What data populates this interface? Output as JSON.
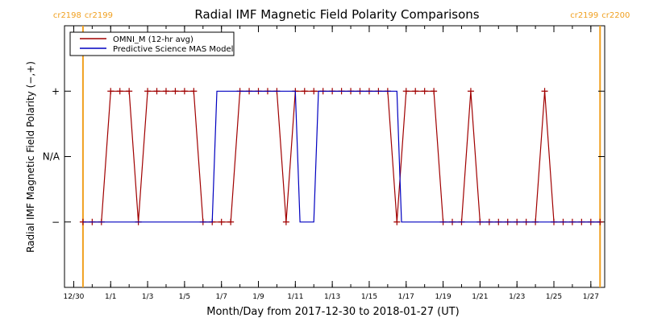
{
  "chart_data": {
    "type": "line",
    "title": "Radial IMF Magnetic Field Polarity Comparisons",
    "xlabel": "Month/Day from 2017-12-30 to 2018-01-27 (UT)",
    "ylabel": "Radial IMF Magnetic Field Polarity (−,+)",
    "xlim": [
      "2017-12-30T00:00",
      "2018-01-27T12:00"
    ],
    "ylim": [
      -2,
      2
    ],
    "y_categories": [
      {
        "value": -1,
        "label": "−"
      },
      {
        "value": 0,
        "label": "N/A"
      },
      {
        "value": 1,
        "label": "+"
      }
    ],
    "x_tick_labels": [
      {
        "date": "2017-12-30",
        "label": "12/30"
      },
      {
        "date": "2018-01-01",
        "label": "1/1"
      },
      {
        "date": "2018-01-03",
        "label": "1/3"
      },
      {
        "date": "2018-01-05",
        "label": "1/5"
      },
      {
        "date": "2018-01-07",
        "label": "1/7"
      },
      {
        "date": "2018-01-09",
        "label": "1/9"
      },
      {
        "date": "2018-01-11",
        "label": "1/11"
      },
      {
        "date": "2018-01-13",
        "label": "1/13"
      },
      {
        "date": "2018-01-15",
        "label": "1/15"
      },
      {
        "date": "2018-01-17",
        "label": "1/17"
      },
      {
        "date": "2018-01-19",
        "label": "1/19"
      },
      {
        "date": "2018-01-21",
        "label": "1/21"
      },
      {
        "date": "2018-01-23",
        "label": "1/23"
      },
      {
        "date": "2018-01-25",
        "label": "1/25"
      },
      {
        "date": "2018-01-27",
        "label": "1/27"
      }
    ],
    "rotation_markers": [
      {
        "date": "2017-12-30T12:00",
        "left_label": "cr2198",
        "right_label": "cr2199"
      },
      {
        "date": "2018-01-27T12:00",
        "left_label": "cr2199",
        "right_label": "cr2200"
      }
    ],
    "legend_position": "top-left",
    "series": [
      {
        "name": "OMNI_M (12-hr avg)",
        "color": "#a00000",
        "markers": "plus",
        "x": [
          "2017-12-30T12:00",
          "2017-12-31T00:00",
          "2017-12-31T12:00",
          "2018-01-01T00:00",
          "2018-01-01T12:00",
          "2018-01-02T00:00",
          "2018-01-02T12:00",
          "2018-01-03T00:00",
          "2018-01-03T12:00",
          "2018-01-04T00:00",
          "2018-01-04T12:00",
          "2018-01-05T00:00",
          "2018-01-05T12:00",
          "2018-01-06T00:00",
          "2018-01-06T12:00",
          "2018-01-07T00:00",
          "2018-01-07T12:00",
          "2018-01-08T00:00",
          "2018-01-08T12:00",
          "2018-01-09T00:00",
          "2018-01-09T12:00",
          "2018-01-10T00:00",
          "2018-01-10T12:00",
          "2018-01-11T00:00",
          "2018-01-11T12:00",
          "2018-01-12T00:00",
          "2018-01-12T12:00",
          "2018-01-13T00:00",
          "2018-01-13T12:00",
          "2018-01-14T00:00",
          "2018-01-14T12:00",
          "2018-01-15T00:00",
          "2018-01-15T12:00",
          "2018-01-16T00:00",
          "2018-01-16T12:00",
          "2018-01-17T00:00",
          "2018-01-17T12:00",
          "2018-01-18T00:00",
          "2018-01-18T12:00",
          "2018-01-19T00:00",
          "2018-01-19T12:00",
          "2018-01-20T00:00",
          "2018-01-20T12:00",
          "2018-01-21T00:00",
          "2018-01-21T12:00",
          "2018-01-22T00:00",
          "2018-01-22T12:00",
          "2018-01-23T00:00",
          "2018-01-23T12:00",
          "2018-01-24T00:00",
          "2018-01-24T12:00",
          "2018-01-25T00:00",
          "2018-01-25T12:00",
          "2018-01-26T00:00",
          "2018-01-26T12:00",
          "2018-01-27T00:00",
          "2018-01-27T12:00"
        ],
        "y": [
          -1,
          -1,
          -1,
          1,
          1,
          1,
          -1,
          1,
          1,
          1,
          1,
          1,
          1,
          -1,
          -1,
          -1,
          -1,
          1,
          1,
          1,
          1,
          1,
          -1,
          1,
          1,
          1,
          1,
          1,
          1,
          1,
          1,
          1,
          1,
          1,
          -1,
          1,
          1,
          1,
          1,
          -1,
          -1,
          -1,
          1,
          -1,
          -1,
          -1,
          -1,
          -1,
          -1,
          -1,
          1,
          -1,
          -1,
          -1,
          -1,
          -1,
          -1
        ]
      },
      {
        "name": "Predictive Science MAS Model",
        "color": "#0000c0",
        "step": true,
        "x": [
          "2017-12-30T12:00",
          "2018-01-06T12:00",
          "2018-01-06T18:00",
          "2018-01-11T00:00",
          "2018-01-11T06:00",
          "2018-01-12T00:00",
          "2018-01-12T06:00",
          "2018-01-16T12:00",
          "2018-01-16T18:00",
          "2018-01-27T12:00"
        ],
        "y": [
          -1,
          -1,
          1,
          1,
          -1,
          -1,
          1,
          1,
          -1,
          -1
        ]
      }
    ]
  }
}
